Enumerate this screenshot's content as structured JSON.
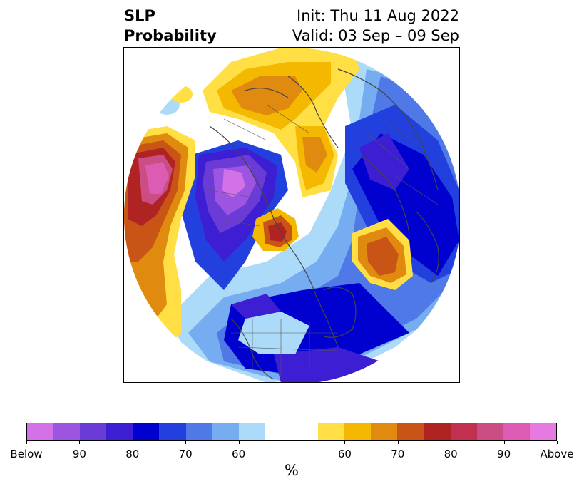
{
  "title": {
    "variable": "SLP",
    "subtitle": "Probability",
    "init": "Init: Thu 11 Aug 2022",
    "valid": "Valid: 03 Sep – 09 Sep"
  },
  "colorbar": {
    "unit": "%",
    "colors": [
      "#d372e8",
      "#9d54e0",
      "#6b3bd6",
      "#3e1ed2",
      "#0000cf",
      "#2240dd",
      "#4f79e6",
      "#75adf0",
      "#acdbfa",
      "#ffffff",
      "#ffffff",
      "#ffdf43",
      "#f4b800",
      "#e08a10",
      "#c85515",
      "#b02323",
      "#c23050",
      "#cc4c84",
      "#dc5cb4",
      "#e67ae0"
    ],
    "tick_labels": [
      "Below",
      "90",
      "80",
      "70",
      "60",
      "60",
      "70",
      "80",
      "90",
      "Above"
    ]
  },
  "map": {
    "projection": "north-polar-stereographic",
    "features": [
      "coastlines",
      "country-borders",
      "state-borders"
    ]
  }
}
